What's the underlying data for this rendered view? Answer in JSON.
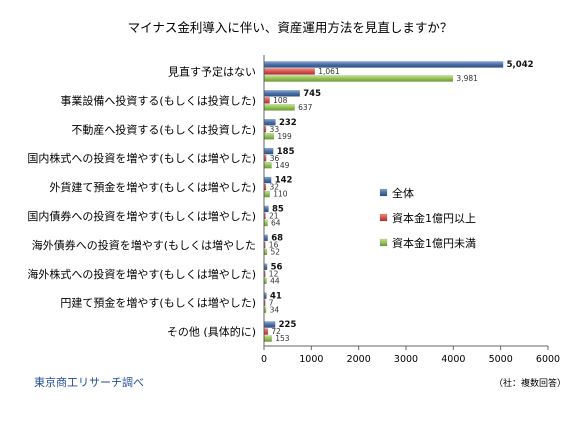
{
  "chart_data": {
    "type": "bar",
    "orientation": "horizontal",
    "title": "マイナス金利導入に伴い、資産運用方法を見直しますか？",
    "categories": [
      "見直す予定はない",
      "事業設備へ投資する(もしくは投資した)",
      "不動産へ投資する(もしくは投資した)",
      "国内株式への投資を増やす(もしくは増やした)",
      "外貨建て預金を増やす(もしくは増やした)",
      "国内債券への投資を増やす(もしくは増やした)",
      "海外債券への投資を増やす(もしくは増やした",
      "海外株式への投資を増やす(もしくは増やした)",
      "円建て預金を増やす(もしくは増やした)",
      "その他 (具体的に)"
    ],
    "series": [
      {
        "name": "全体",
        "color": "#4a6fa5",
        "values": [
          5042,
          745,
          232,
          185,
          142,
          85,
          68,
          56,
          41,
          225
        ]
      },
      {
        "name": "資本金1億円以上",
        "color": "#d9534f",
        "values": [
          1061,
          108,
          33,
          36,
          32,
          21,
          16,
          12,
          7,
          72
        ]
      },
      {
        "name": "資本金1億円未満",
        "color": "#93c254",
        "values": [
          3981,
          637,
          199,
          149,
          110,
          64,
          52,
          44,
          34,
          153
        ]
      }
    ],
    "value_labels": [
      [
        "5,042",
        "1,061",
        "3,981"
      ],
      [
        "745",
        "108",
        "637"
      ],
      [
        "232",
        "33",
        "199"
      ],
      [
        "185",
        "36",
        "149"
      ],
      [
        "142",
        "32",
        "110"
      ],
      [
        "85",
        "21",
        "64"
      ],
      [
        "68",
        "16",
        "52"
      ],
      [
        "56",
        "12",
        "44"
      ],
      [
        "41",
        "7",
        "34"
      ],
      [
        "225",
        "72",
        "153"
      ]
    ],
    "xlim": [
      0,
      6000
    ],
    "xticks": [
      "0",
      "1000",
      "2000",
      "3000",
      "4000",
      "5000",
      "6000"
    ],
    "legend_position": "right",
    "footnote": "（社：複数回答）",
    "source": "東京商工リサーチ調べ"
  }
}
